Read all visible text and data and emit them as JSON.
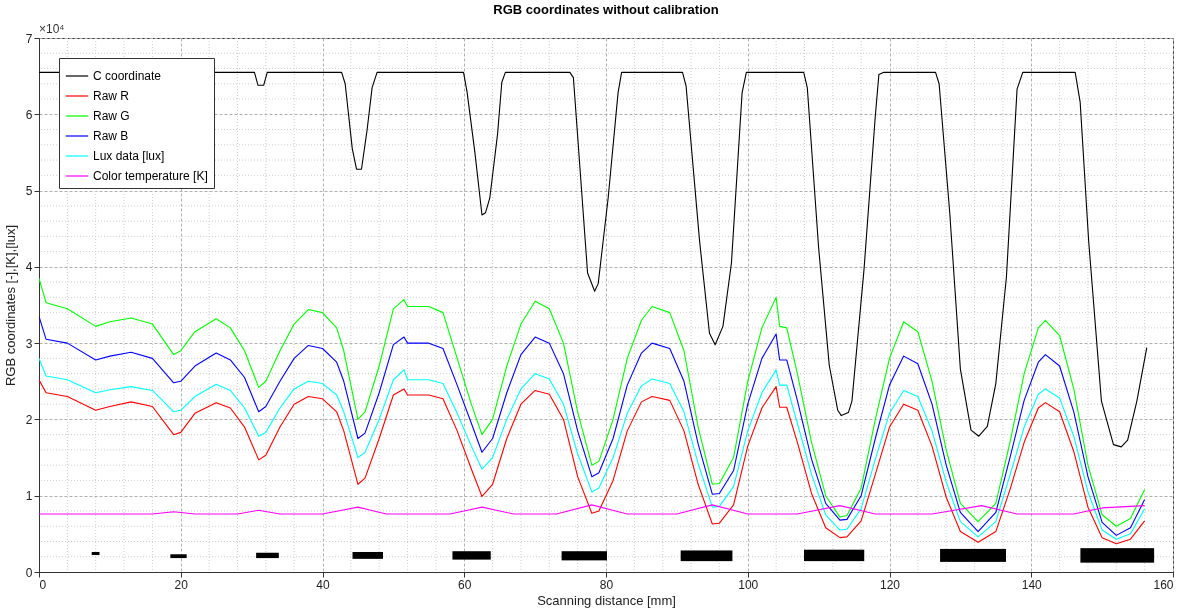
{
  "chart_data": {
    "type": "line",
    "title": "RGB coordinates without calibration",
    "xlabel": "Scanning distance [mm]",
    "ylabel": "RGB coordinates [-],[K],[lux]",
    "annotations": [
      "×10⁴"
    ],
    "xlim": [
      0,
      160
    ],
    "xticks": [
      0,
      20,
      40,
      60,
      80,
      100,
      120,
      140,
      160
    ],
    "ylim": [
      0,
      7
    ],
    "yticks": [
      0,
      1,
      2,
      3,
      4,
      5,
      6,
      7
    ],
    "grid": true,
    "legend": "top left",
    "line_style": "solid",
    "x": [
      0,
      1,
      4,
      8,
      10,
      13,
      16,
      19,
      20,
      22,
      25,
      27,
      29,
      31,
      32,
      34,
      36,
      38,
      40,
      42,
      43,
      45,
      46,
      48,
      50,
      51.5,
      52,
      55,
      57,
      59,
      61,
      62.5,
      64,
      66,
      68,
      70,
      72,
      74,
      76,
      78,
      79,
      81,
      83,
      85,
      86.5,
      89,
      91,
      93,
      95,
      96,
      98,
      100,
      102,
      104,
      104.5,
      105.5,
      107,
      109,
      111,
      113,
      114,
      116,
      118,
      120,
      122,
      124,
      126,
      128,
      130,
      132.5,
      135,
      137,
      139,
      141,
      142,
      144,
      146,
      148,
      150,
      152,
      154,
      156
    ],
    "series": [
      {
        "name": "C coordinate",
        "color": "#000000",
        "x": [
          0,
          30.4,
          30.9,
          31.7,
          32.2,
          42.7,
          43.2,
          44.2,
          44.8,
          45.5,
          46.3,
          47,
          47.7,
          59.9,
          60.4,
          61.5,
          62.5,
          63,
          63.6,
          64.7,
          65.3,
          65.8,
          74.9,
          75.4,
          77.4,
          78.4,
          78.9,
          80.3,
          81.7,
          82.2,
          90.8,
          91.3,
          93.2,
          94.6,
          95.4,
          96.5,
          97.7,
          99.2,
          99.8,
          107.9,
          108.4,
          110,
          111.5,
          112.7,
          113.2,
          114.2,
          114.7,
          116.4,
          118,
          118.5,
          119.2,
          126.5,
          127,
          128.5,
          130,
          131.5,
          132.6,
          133.8,
          135,
          136.5,
          138,
          138.8,
          146.2,
          146.9,
          148.1,
          149.9,
          151.6,
          152.7,
          153.6,
          154.9,
          156.3
        ],
        "values": [
          6.55,
          6.55,
          6.38,
          6.38,
          6.55,
          6.55,
          6.4,
          5.55,
          5.28,
          5.28,
          5.8,
          6.35,
          6.55,
          6.55,
          6.29,
          5.5,
          4.68,
          4.71,
          4.9,
          5.74,
          6.42,
          6.55,
          6.55,
          6.48,
          3.92,
          3.68,
          3.78,
          4.9,
          6.28,
          6.55,
          6.55,
          6.37,
          4.34,
          3.13,
          2.98,
          3.22,
          4.05,
          6.28,
          6.55,
          6.55,
          6.35,
          4.25,
          2.71,
          2.12,
          2.05,
          2.09,
          2.24,
          3.96,
          5.98,
          6.52,
          6.55,
          6.55,
          6.4,
          4.71,
          2.66,
          1.86,
          1.78,
          1.91,
          2.47,
          3.87,
          6.33,
          6.55,
          6.55,
          6.16,
          4.34,
          2.24,
          1.67,
          1.64,
          1.73,
          2.24,
          2.94
        ]
      },
      {
        "name": "Raw R",
        "color": "#ff0000",
        "values": [
          2.52,
          2.35,
          2.3,
          2.12,
          2.17,
          2.23,
          2.17,
          1.8,
          1.83,
          2.08,
          2.22,
          2.15,
          1.9,
          1.47,
          1.53,
          1.9,
          2.2,
          2.3,
          2.27,
          2.1,
          1.85,
          1.15,
          1.23,
          1.75,
          2.32,
          2.4,
          2.32,
          2.32,
          2.27,
          1.85,
          1.35,
          0.99,
          1.15,
          1.75,
          2.2,
          2.38,
          2.33,
          2.0,
          1.25,
          0.77,
          0.8,
          1.2,
          1.85,
          2.23,
          2.3,
          2.25,
          1.85,
          1.15,
          0.63,
          0.64,
          0.88,
          1.65,
          2.15,
          2.43,
          2.16,
          2.16,
          1.7,
          1.03,
          0.58,
          0.45,
          0.46,
          0.67,
          1.28,
          1.9,
          2.2,
          2.12,
          1.65,
          0.98,
          0.53,
          0.39,
          0.53,
          1.08,
          1.7,
          2.15,
          2.22,
          2.1,
          1.58,
          0.85,
          0.45,
          0.37,
          0.43,
          0.67
        ]
      },
      {
        "name": "Raw G",
        "color": "#00ff00",
        "values": [
          3.85,
          3.53,
          3.45,
          3.22,
          3.28,
          3.33,
          3.25,
          2.85,
          2.9,
          3.15,
          3.32,
          3.2,
          2.9,
          2.42,
          2.5,
          2.9,
          3.25,
          3.44,
          3.4,
          3.2,
          2.9,
          2.0,
          2.1,
          2.7,
          3.45,
          3.57,
          3.48,
          3.48,
          3.4,
          2.8,
          2.2,
          1.8,
          2.0,
          2.7,
          3.25,
          3.55,
          3.45,
          3.0,
          2.1,
          1.4,
          1.45,
          2.0,
          2.8,
          3.3,
          3.48,
          3.4,
          2.9,
          1.9,
          1.15,
          1.16,
          1.5,
          2.5,
          3.2,
          3.6,
          3.22,
          3.2,
          2.6,
          1.7,
          1.0,
          0.72,
          0.74,
          1.1,
          2.0,
          2.8,
          3.28,
          3.15,
          2.5,
          1.6,
          0.9,
          0.66,
          0.9,
          1.7,
          2.6,
          3.2,
          3.3,
          3.1,
          2.4,
          1.4,
          0.75,
          0.6,
          0.7,
          1.08
        ]
      },
      {
        "name": "Raw B",
        "color": "#0000ff",
        "values": [
          3.35,
          3.05,
          3.0,
          2.78,
          2.83,
          2.88,
          2.8,
          2.48,
          2.5,
          2.7,
          2.87,
          2.78,
          2.55,
          2.1,
          2.17,
          2.5,
          2.8,
          2.97,
          2.93,
          2.75,
          2.5,
          1.75,
          1.82,
          2.35,
          2.98,
          3.08,
          3.0,
          3.0,
          2.93,
          2.45,
          1.95,
          1.57,
          1.75,
          2.35,
          2.85,
          3.08,
          3.0,
          2.6,
          1.85,
          1.25,
          1.3,
          1.75,
          2.45,
          2.87,
          3.0,
          2.93,
          2.5,
          1.68,
          1.02,
          1.03,
          1.33,
          2.2,
          2.8,
          3.12,
          2.78,
          2.78,
          2.25,
          1.48,
          0.9,
          0.68,
          0.69,
          1.0,
          1.75,
          2.45,
          2.83,
          2.73,
          2.2,
          1.4,
          0.78,
          0.53,
          0.78,
          1.5,
          2.25,
          2.75,
          2.85,
          2.7,
          2.1,
          1.25,
          0.65,
          0.48,
          0.58,
          0.95
        ]
      },
      {
        "name": "Lux data [lux]",
        "color": "#00ffff",
        "values": [
          2.8,
          2.57,
          2.52,
          2.35,
          2.39,
          2.43,
          2.38,
          2.1,
          2.12,
          2.3,
          2.46,
          2.38,
          2.15,
          1.78,
          1.83,
          2.15,
          2.4,
          2.5,
          2.47,
          2.32,
          2.1,
          1.5,
          1.57,
          2.0,
          2.52,
          2.65,
          2.52,
          2.52,
          2.47,
          2.08,
          1.65,
          1.35,
          1.5,
          2.0,
          2.4,
          2.6,
          2.53,
          2.2,
          1.55,
          1.05,
          1.1,
          1.5,
          2.08,
          2.44,
          2.53,
          2.47,
          2.1,
          1.42,
          0.85,
          0.86,
          1.12,
          1.85,
          2.35,
          2.65,
          2.45,
          2.45,
          1.95,
          1.28,
          0.75,
          0.55,
          0.56,
          0.83,
          1.48,
          2.08,
          2.38,
          2.3,
          1.85,
          1.18,
          0.66,
          0.46,
          0.66,
          1.27,
          1.9,
          2.33,
          2.4,
          2.28,
          1.78,
          1.05,
          0.55,
          0.43,
          0.5,
          0.83
        ]
      },
      {
        "name": "Color temperature [K]",
        "color": "#ff00ff",
        "x": [
          0,
          10,
          16,
          19,
          22,
          28,
          31,
          34,
          40,
          45,
          49,
          58,
          62.5,
          67,
          73,
          78,
          83,
          90,
          95,
          100,
          107,
          113,
          118,
          126,
          133,
          138,
          146,
          150,
          156
        ],
        "values": [
          0.76,
          0.76,
          0.76,
          0.79,
          0.76,
          0.76,
          0.81,
          0.76,
          0.76,
          0.85,
          0.76,
          0.76,
          0.85,
          0.76,
          0.76,
          0.88,
          0.76,
          0.76,
          0.88,
          0.76,
          0.76,
          0.87,
          0.76,
          0.76,
          0.87,
          0.76,
          0.76,
          0.84,
          0.87
        ]
      }
    ]
  }
}
